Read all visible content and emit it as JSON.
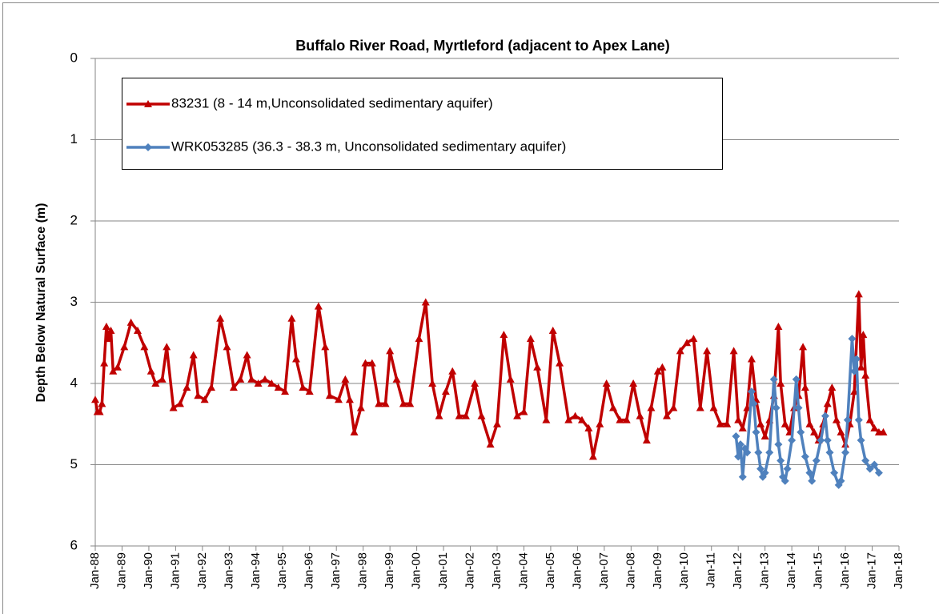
{
  "chart_data": {
    "type": "line",
    "title": "Buffalo River Road, Myrtleford (adjacent to Apex Lane)",
    "y_label": "Depth Below Natural Surface (m)",
    "ylim": [
      0,
      6
    ],
    "y_inverted": true,
    "yticks": [
      0,
      1,
      2,
      3,
      4,
      5,
      6
    ],
    "grid": true,
    "legend": "top-left",
    "xlim": [
      "1988-01",
      "2018-01"
    ],
    "xticks": [
      {
        "value": "1988-01",
        "label": "Jan-88"
      },
      {
        "value": "1989-01",
        "label": "Jan-89"
      },
      {
        "value": "1990-01",
        "label": "Jan-90"
      },
      {
        "value": "1991-01",
        "label": "Jan-91"
      },
      {
        "value": "1992-01",
        "label": "Jan-92"
      },
      {
        "value": "1993-01",
        "label": "Jan-93"
      },
      {
        "value": "1994-01",
        "label": "Jan-94"
      },
      {
        "value": "1995-01",
        "label": "Jan-95"
      },
      {
        "value": "1996-01",
        "label": "Jan-96"
      },
      {
        "value": "1997-01",
        "label": "Jan-97"
      },
      {
        "value": "1998-01",
        "label": "Jan-98"
      },
      {
        "value": "1999-01",
        "label": "Jan-99"
      },
      {
        "value": "2000-01",
        "label": "Jan-00"
      },
      {
        "value": "2001-01",
        "label": "Jan-01"
      },
      {
        "value": "2002-01",
        "label": "Jan-02"
      },
      {
        "value": "2003-01",
        "label": "Jan-03"
      },
      {
        "value": "2004-01",
        "label": "Jan-04"
      },
      {
        "value": "2005-01",
        "label": "Jan-05"
      },
      {
        "value": "2006-01",
        "label": "Jan-06"
      },
      {
        "value": "2007-01",
        "label": "Jan-07"
      },
      {
        "value": "2008-01",
        "label": "Jan-08"
      },
      {
        "value": "2009-01",
        "label": "Jan-09"
      },
      {
        "value": "2010-01",
        "label": "Jan-10"
      },
      {
        "value": "2011-01",
        "label": "Jan-11"
      },
      {
        "value": "2012-01",
        "label": "Jan-12"
      },
      {
        "value": "2013-01",
        "label": "Jan-13"
      },
      {
        "value": "2014-01",
        "label": "Jan-14"
      },
      {
        "value": "2015-01",
        "label": "Jan-15"
      },
      {
        "value": "2016-01",
        "label": "Jan-16"
      },
      {
        "value": "2017-01",
        "label": "Jan-17"
      },
      {
        "value": "2018-01",
        "label": "Jan-18"
      }
    ],
    "series": [
      {
        "name": "83231 (8 - 14 m,Unconsolidated sedimentary aquifer)",
        "color": "#c00000",
        "marker": "triangle",
        "x": [
          "1988-01",
          "1988-02",
          "1988-03",
          "1988-04",
          "1988-05",
          "1988-06",
          "1988-07",
          "1988-08",
          "1988-09",
          "1988-11",
          "1989-02",
          "1989-05",
          "1989-08",
          "1989-11",
          "1990-02",
          "1990-04",
          "1990-07",
          "1990-09",
          "1990-12",
          "1991-03",
          "1991-06",
          "1991-09",
          "1991-11",
          "1992-02",
          "1992-05",
          "1992-09",
          "1992-12",
          "1993-03",
          "1993-06",
          "1993-09",
          "1993-11",
          "1994-02",
          "1994-05",
          "1994-08",
          "1994-11",
          "1995-02",
          "1995-05",
          "1995-07",
          "1995-10",
          "1996-01",
          "1996-05",
          "1996-08",
          "1996-10",
          "1997-02",
          "1997-05",
          "1997-07",
          "1997-09",
          "1997-12",
          "1998-02",
          "1998-05",
          "1998-08",
          "1998-11",
          "1999-01",
          "1999-04",
          "1999-07",
          "1999-10",
          "2000-02",
          "2000-05",
          "2000-08",
          "2000-11",
          "2001-02",
          "2001-05",
          "2001-08",
          "2001-11",
          "2002-03",
          "2002-06",
          "2002-10",
          "2003-01",
          "2003-04",
          "2003-07",
          "2003-10",
          "2004-01",
          "2004-04",
          "2004-07",
          "2004-11",
          "2005-02",
          "2005-05",
          "2005-09",
          "2005-12",
          "2006-03",
          "2006-06",
          "2006-08",
          "2006-11",
          "2007-02",
          "2007-05",
          "2007-08",
          "2007-11",
          "2008-02",
          "2008-05",
          "2008-08",
          "2008-10",
          "2009-01",
          "2009-03",
          "2009-05",
          "2009-08",
          "2009-11",
          "2010-02",
          "2010-05",
          "2010-08",
          "2010-11",
          "2011-02",
          "2011-05",
          "2011-08",
          "2011-11",
          "2012-01",
          "2012-03",
          "2012-05",
          "2012-07",
          "2012-09",
          "2012-11",
          "2013-01",
          "2013-03",
          "2013-05",
          "2013-07",
          "2013-08",
          "2013-10",
          "2013-12",
          "2014-02",
          "2014-04",
          "2014-06",
          "2014-07",
          "2014-09",
          "2014-11",
          "2015-01",
          "2015-03",
          "2015-05",
          "2015-07",
          "2015-09",
          "2015-11",
          "2016-01",
          "2016-03",
          "2016-05",
          "2016-07",
          "2016-08",
          "2016-09",
          "2016-10",
          "2016-12",
          "2017-02",
          "2017-04",
          "2017-06"
        ],
        "values": [
          4.2,
          4.35,
          4.35,
          4.25,
          3.75,
          3.3,
          3.45,
          3.35,
          3.85,
          3.8,
          3.55,
          3.25,
          3.35,
          3.55,
          3.85,
          4.0,
          3.95,
          3.55,
          4.3,
          4.25,
          4.05,
          3.65,
          4.15,
          4.2,
          4.05,
          3.2,
          3.55,
          4.05,
          3.95,
          3.65,
          3.95,
          4.0,
          3.95,
          4.0,
          4.05,
          4.1,
          3.2,
          3.7,
          4.05,
          4.1,
          3.05,
          3.55,
          4.15,
          4.2,
          3.95,
          4.2,
          4.6,
          4.3,
          3.75,
          3.75,
          4.25,
          4.25,
          3.6,
          3.95,
          4.25,
          4.25,
          3.45,
          3.0,
          4.0,
          4.4,
          4.1,
          3.85,
          4.4,
          4.4,
          4.0,
          4.4,
          4.75,
          4.5,
          3.4,
          3.95,
          4.4,
          4.35,
          3.45,
          3.8,
          4.45,
          3.35,
          3.75,
          4.45,
          4.4,
          4.45,
          4.55,
          4.9,
          4.5,
          4.0,
          4.3,
          4.45,
          4.45,
          4.0,
          4.4,
          4.7,
          4.3,
          3.85,
          3.8,
          4.4,
          4.3,
          3.6,
          3.5,
          3.45,
          4.3,
          3.6,
          4.3,
          4.5,
          4.5,
          3.6,
          4.45,
          4.55,
          4.3,
          3.7,
          4.2,
          4.5,
          4.65,
          4.45,
          4.15,
          3.3,
          4.0,
          4.5,
          4.6,
          4.3,
          4.15,
          3.55,
          4.05,
          4.5,
          4.6,
          4.7,
          4.5,
          4.25,
          4.05,
          4.45,
          4.6,
          4.75,
          4.5,
          4.1,
          2.9,
          3.8,
          3.4,
          3.9,
          4.45,
          4.55,
          4.6,
          4.6
        ]
      },
      {
        "name": "WRK053285 (36.3 - 38.3 m, Unconsolidated sedimentary aquifer)",
        "color": "#4f81bd",
        "marker": "diamond",
        "x": [
          "2011-12",
          "2012-01",
          "2012-02",
          "2012-03",
          "2012-04",
          "2012-05",
          "2012-07",
          "2012-08",
          "2012-09",
          "2012-10",
          "2012-11",
          "2012-12",
          "2013-01",
          "2013-03",
          "2013-05",
          "2013-06",
          "2013-07",
          "2013-08",
          "2013-09",
          "2013-10",
          "2013-11",
          "2014-01",
          "2014-03",
          "2014-04",
          "2014-05",
          "2014-07",
          "2014-09",
          "2014-10",
          "2014-12",
          "2015-02",
          "2015-04",
          "2015-05",
          "2015-06",
          "2015-08",
          "2015-10",
          "2015-11",
          "2016-01",
          "2016-02",
          "2016-04",
          "2016-05",
          "2016-06",
          "2016-07",
          "2016-08",
          "2016-10",
          "2016-12",
          "2017-02",
          "2017-04"
        ],
        "values": [
          4.65,
          4.9,
          4.75,
          5.15,
          4.8,
          4.85,
          4.1,
          4.25,
          4.6,
          4.85,
          5.05,
          5.15,
          5.1,
          4.85,
          3.95,
          4.3,
          4.75,
          4.95,
          5.15,
          5.2,
          5.05,
          4.7,
          3.95,
          4.3,
          4.6,
          4.9,
          5.1,
          5.2,
          4.95,
          4.7,
          4.4,
          4.7,
          4.85,
          5.1,
          5.25,
          5.2,
          4.85,
          4.45,
          3.45,
          3.85,
          3.7,
          4.45,
          4.7,
          4.95,
          5.05,
          5.0,
          5.1
        ]
      }
    ]
  }
}
